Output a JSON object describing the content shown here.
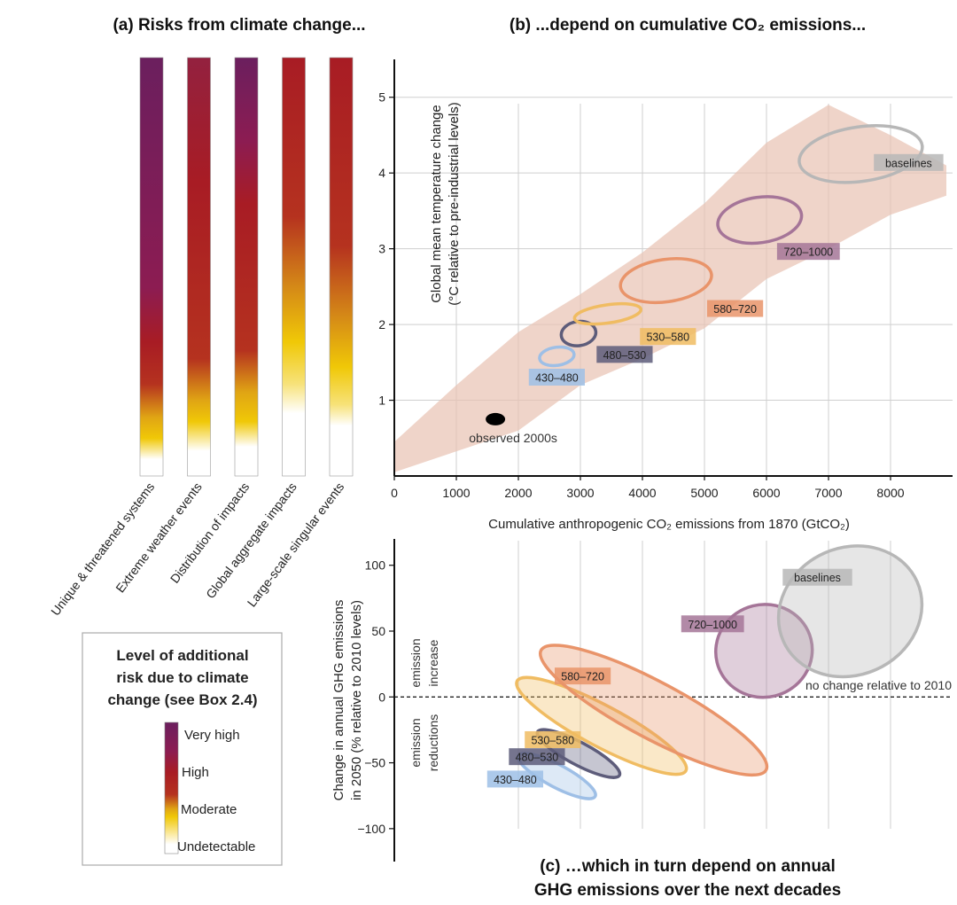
{
  "panel_a": {
    "title": "(a) Risks from climate change...",
    "bars": [
      {
        "label": "Unique & threatened systems",
        "stops": [
          [
            0,
            "#6b1f5e"
          ],
          [
            0.55,
            "#8c1c52"
          ],
          [
            0.68,
            "#a81c24"
          ],
          [
            0.78,
            "#b5321f"
          ],
          [
            0.86,
            "#e0a514"
          ],
          [
            0.91,
            "#f0c807"
          ],
          [
            0.96,
            "#ffffff"
          ]
        ]
      },
      {
        "label": "Extreme weather events",
        "stops": [
          [
            0,
            "#93213f"
          ],
          [
            0.3,
            "#a81c24"
          ],
          [
            0.72,
            "#b5321f"
          ],
          [
            0.82,
            "#e0a514"
          ],
          [
            0.87,
            "#f0c807"
          ],
          [
            0.94,
            "#ffffff"
          ]
        ]
      },
      {
        "label": "Distribution of impacts",
        "stops": [
          [
            0,
            "#6b1f5e"
          ],
          [
            0.2,
            "#8c1c52"
          ],
          [
            0.35,
            "#a81c24"
          ],
          [
            0.7,
            "#b5321f"
          ],
          [
            0.8,
            "#e0a514"
          ],
          [
            0.87,
            "#f0c807"
          ],
          [
            0.93,
            "#ffffff"
          ]
        ]
      },
      {
        "label": "Global aggregate impacts",
        "stops": [
          [
            0,
            "#a81c24"
          ],
          [
            0.38,
            "#b5321f"
          ],
          [
            0.55,
            "#d58a17"
          ],
          [
            0.68,
            "#f0c807"
          ],
          [
            0.78,
            "#f7e27a"
          ],
          [
            0.85,
            "#ffffff"
          ]
        ]
      },
      {
        "label": "Large-scale singular events",
        "stops": [
          [
            0,
            "#a81c24"
          ],
          [
            0.45,
            "#b5321f"
          ],
          [
            0.62,
            "#d58a17"
          ],
          [
            0.74,
            "#f0c807"
          ],
          [
            0.83,
            "#f7e27a"
          ],
          [
            0.88,
            "#ffffff"
          ]
        ]
      }
    ]
  },
  "legend": {
    "title_lines": [
      "Level of additional",
      "risk due to climate",
      "change (see Box 2.4)"
    ],
    "levels": [
      "Very high",
      "High",
      "Moderate",
      "Undetectable"
    ]
  },
  "chart_data": [
    {
      "type": "scatter",
      "title": "(b) ...depend on cumulative CO₂ emissions...",
      "xlabel": "Cumulative anthropogenic CO₂ emissions from 1870 (GtCO₂)",
      "ylabel_lines": [
        "Global mean temperature change",
        "(°C relative to pre-industrial levels)"
      ],
      "xlim": [
        0,
        9000
      ],
      "ylim": [
        0,
        5.5
      ],
      "xticks": [
        0,
        1000,
        2000,
        3000,
        4000,
        5000,
        6000,
        7000,
        8000
      ],
      "yticks": [
        1,
        2,
        3,
        4,
        5
      ],
      "grid": true,
      "range_band": [
        [
          0,
          0.05
        ],
        [
          2000,
          0.6
        ],
        [
          3000,
          1.2
        ],
        [
          4000,
          1.55
        ],
        [
          5000,
          1.95
        ],
        [
          6000,
          2.6
        ],
        [
          7000,
          3.0
        ],
        [
          8000,
          3.45
        ],
        [
          8900,
          3.7
        ],
        [
          8900,
          4.1
        ],
        [
          8000,
          4.5
        ],
        [
          7000,
          4.9
        ],
        [
          6000,
          4.4
        ],
        [
          5000,
          3.6
        ],
        [
          4000,
          2.95
        ],
        [
          3000,
          2.4
        ],
        [
          2000,
          1.9
        ],
        [
          1000,
          1.2
        ],
        [
          0,
          0.45
        ]
      ],
      "observed": {
        "label": "observed 2000s",
        "x": 1630,
        "y": 0.75
      },
      "series": [
        {
          "name": "430–480",
          "x": 2620,
          "y": 1.58,
          "rx": 280,
          "ry": 0.12,
          "color": "#9ebfe6"
        },
        {
          "name": "480–530",
          "x": 2970,
          "y": 1.88,
          "rx": 280,
          "ry": 0.16,
          "color": "#5d5c7a"
        },
        {
          "name": "530–580",
          "x": 3440,
          "y": 2.14,
          "rx": 540,
          "ry": 0.12,
          "color": "#f0bc62"
        },
        {
          "name": "580–720",
          "x": 4380,
          "y": 2.58,
          "rx": 740,
          "ry": 0.28,
          "color": "#e9946a"
        },
        {
          "name": "720–1000",
          "x": 5890,
          "y": 3.38,
          "rx": 680,
          "ry": 0.3,
          "color": "#a57598"
        },
        {
          "name": "baselines",
          "x": 7520,
          "y": 4.25,
          "rx": 1000,
          "ry": 0.36,
          "color": "#b7b7b7"
        }
      ]
    },
    {
      "type": "scatter",
      "title_lines": [
        "(c) …which in turn depend on annual",
        "GHG emissions over the next decades"
      ],
      "ylabel_lines": [
        "Change in annual GHG emissions",
        "in 2050 (% relative to 2010 levels)"
      ],
      "xlim": [
        0,
        9000
      ],
      "ylim": [
        -125,
        120
      ],
      "yticks": [
        100,
        50,
        0,
        -50,
        -100
      ],
      "zero_line_label": "no change relative to 2010",
      "region_labels": {
        "increase": [
          "emission",
          "increase"
        ],
        "reductions": [
          "emission",
          "reductions"
        ]
      },
      "series": [
        {
          "name": "430–480",
          "x": 2620,
          "y": -60,
          "rx": 330,
          "ry": 15,
          "color": "#9ebfe6"
        },
        {
          "name": "480–530",
          "x": 2970,
          "y": -43,
          "rx": 330,
          "ry": 16,
          "color": "#5d5c7a"
        },
        {
          "name": "530–580",
          "x": 3340,
          "y": -22,
          "rx": 600,
          "ry": 33,
          "color": "#f0bc62"
        },
        {
          "name": "580–720",
          "x": 4180,
          "y": -10,
          "rx": 830,
          "ry": 44,
          "color": "#e9946a"
        },
        {
          "name": "720–1000",
          "x": 5960,
          "y": 35,
          "rx": 780,
          "ry": 16,
          "color": "#a57598"
        },
        {
          "name": "baselines",
          "x": 7350,
          "y": 65,
          "rx": 1180,
          "ry": 22,
          "color": "#b7b7b7"
        }
      ]
    }
  ]
}
